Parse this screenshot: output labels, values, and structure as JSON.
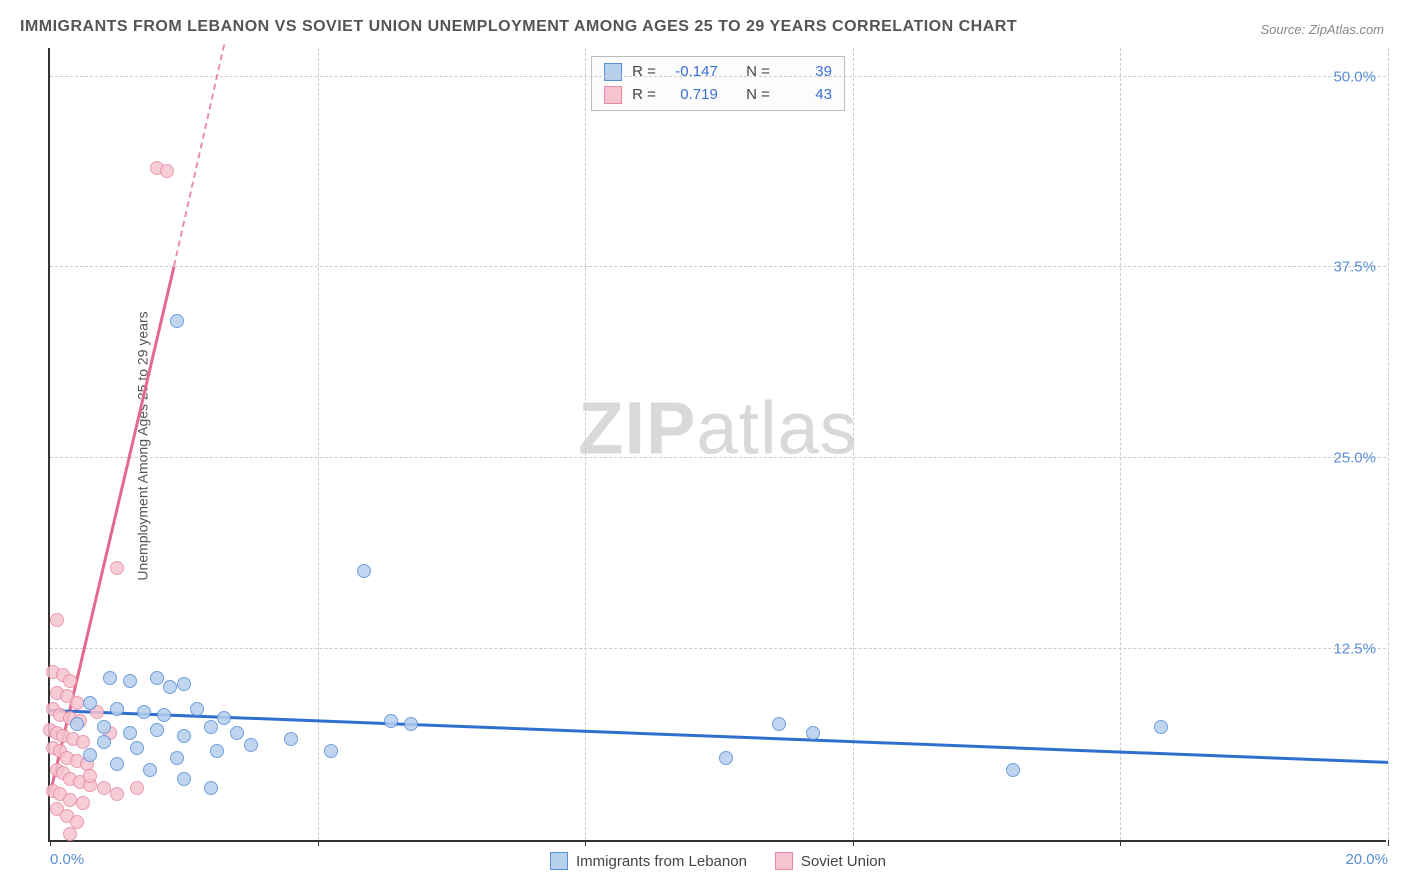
{
  "title": "IMMIGRANTS FROM LEBANON VS SOVIET UNION UNEMPLOYMENT AMONG AGES 25 TO 29 YEARS CORRELATION CHART",
  "source": "Source: ZipAtlas.com",
  "watermark_bold": "ZIP",
  "watermark_light": "atlas",
  "y_axis_label": "Unemployment Among Ages 25 to 29 years",
  "chart": {
    "type": "scatter",
    "background_color": "#ffffff",
    "grid_color": "#cccccc",
    "axis_color": "#333333",
    "tick_label_color": "#5a8fd6",
    "xlim": [
      0,
      20
    ],
    "ylim": [
      0,
      52
    ],
    "x_ticks": [
      0,
      4,
      8,
      12,
      16,
      20
    ],
    "x_tick_labels": {
      "0": "0.0%",
      "20": "20.0%"
    },
    "y_ticks": [
      12.5,
      25.0,
      37.5,
      50.0
    ],
    "y_tick_labels": [
      "12.5%",
      "25.0%",
      "37.5%",
      "50.0%"
    ],
    "marker_radius": 7,
    "marker_stroke_width": 1.5,
    "series": [
      {
        "name": "Immigrants from Lebanon",
        "fill": "#b6d0ee",
        "stroke": "#5a8fd6",
        "R": "-0.147",
        "N": "39",
        "trend": {
          "x1": 0,
          "y1": 8.4,
          "x2": 20,
          "y2": 5.0,
          "color": "#2f6fd0",
          "width": 2.5
        },
        "points": [
          [
            1.9,
            34.0
          ],
          [
            4.7,
            17.6
          ],
          [
            0.9,
            10.6
          ],
          [
            1.2,
            10.4
          ],
          [
            1.6,
            10.6
          ],
          [
            1.8,
            10.0
          ],
          [
            2.0,
            10.2
          ],
          [
            0.6,
            9.0
          ],
          [
            1.0,
            8.6
          ],
          [
            1.4,
            8.4
          ],
          [
            1.7,
            8.2
          ],
          [
            2.2,
            8.6
          ],
          [
            2.6,
            8.0
          ],
          [
            0.4,
            7.6
          ],
          [
            0.8,
            7.4
          ],
          [
            1.2,
            7.0
          ],
          [
            1.6,
            7.2
          ],
          [
            2.0,
            6.8
          ],
          [
            2.4,
            7.4
          ],
          [
            2.8,
            7.0
          ],
          [
            3.6,
            6.6
          ],
          [
            4.2,
            5.8
          ],
          [
            5.1,
            7.8
          ],
          [
            5.4,
            7.6
          ],
          [
            10.1,
            5.4
          ],
          [
            10.9,
            7.6
          ],
          [
            11.4,
            7.0
          ],
          [
            14.4,
            4.6
          ],
          [
            16.6,
            7.4
          ],
          [
            0.6,
            5.6
          ],
          [
            1.0,
            5.0
          ],
          [
            1.5,
            4.6
          ],
          [
            2.0,
            4.0
          ],
          [
            2.4,
            3.4
          ],
          [
            0.8,
            6.4
          ],
          [
            1.3,
            6.0
          ],
          [
            1.9,
            5.4
          ],
          [
            2.5,
            5.8
          ],
          [
            3.0,
            6.2
          ]
        ]
      },
      {
        "name": "Soviet Union",
        "fill": "#f6c4d0",
        "stroke": "#e78aa4",
        "R": "0.719",
        "N": "43",
        "trend": {
          "x1": 0,
          "y1": 3.0,
          "x2": 1.85,
          "y2": 37.5,
          "color": "#e36a8c",
          "width": 2.5
        },
        "trend_dash": {
          "x1": 1.85,
          "y1": 37.5,
          "x2": 2.6,
          "y2": 52.0,
          "color": "#e98fab"
        },
        "points": [
          [
            1.6,
            44.0
          ],
          [
            1.75,
            43.8
          ],
          [
            1.0,
            17.8
          ],
          [
            0.1,
            14.4
          ],
          [
            0.05,
            11.0
          ],
          [
            0.2,
            10.8
          ],
          [
            0.3,
            10.4
          ],
          [
            0.1,
            9.6
          ],
          [
            0.25,
            9.4
          ],
          [
            0.4,
            9.0
          ],
          [
            0.05,
            8.6
          ],
          [
            0.15,
            8.2
          ],
          [
            0.3,
            8.0
          ],
          [
            0.45,
            7.8
          ],
          [
            0.0,
            7.2
          ],
          [
            0.1,
            7.0
          ],
          [
            0.2,
            6.8
          ],
          [
            0.35,
            6.6
          ],
          [
            0.5,
            6.4
          ],
          [
            0.05,
            6.0
          ],
          [
            0.15,
            5.8
          ],
          [
            0.25,
            5.4
          ],
          [
            0.4,
            5.2
          ],
          [
            0.55,
            5.0
          ],
          [
            0.1,
            4.6
          ],
          [
            0.2,
            4.4
          ],
          [
            0.3,
            4.0
          ],
          [
            0.45,
            3.8
          ],
          [
            0.6,
            3.6
          ],
          [
            0.05,
            3.2
          ],
          [
            0.15,
            3.0
          ],
          [
            0.3,
            2.6
          ],
          [
            0.5,
            2.4
          ],
          [
            0.1,
            2.0
          ],
          [
            0.25,
            1.6
          ],
          [
            0.4,
            1.2
          ],
          [
            0.6,
            4.2
          ],
          [
            0.8,
            3.4
          ],
          [
            1.0,
            3.0
          ],
          [
            1.3,
            3.4
          ],
          [
            0.7,
            8.4
          ],
          [
            0.9,
            7.0
          ],
          [
            0.3,
            0.4
          ]
        ]
      }
    ]
  },
  "corr_legend": {
    "label_R": "R =",
    "label_N": "N ="
  },
  "bottom_legend": {
    "items": [
      "Immigrants from Lebanon",
      "Soviet Union"
    ]
  }
}
